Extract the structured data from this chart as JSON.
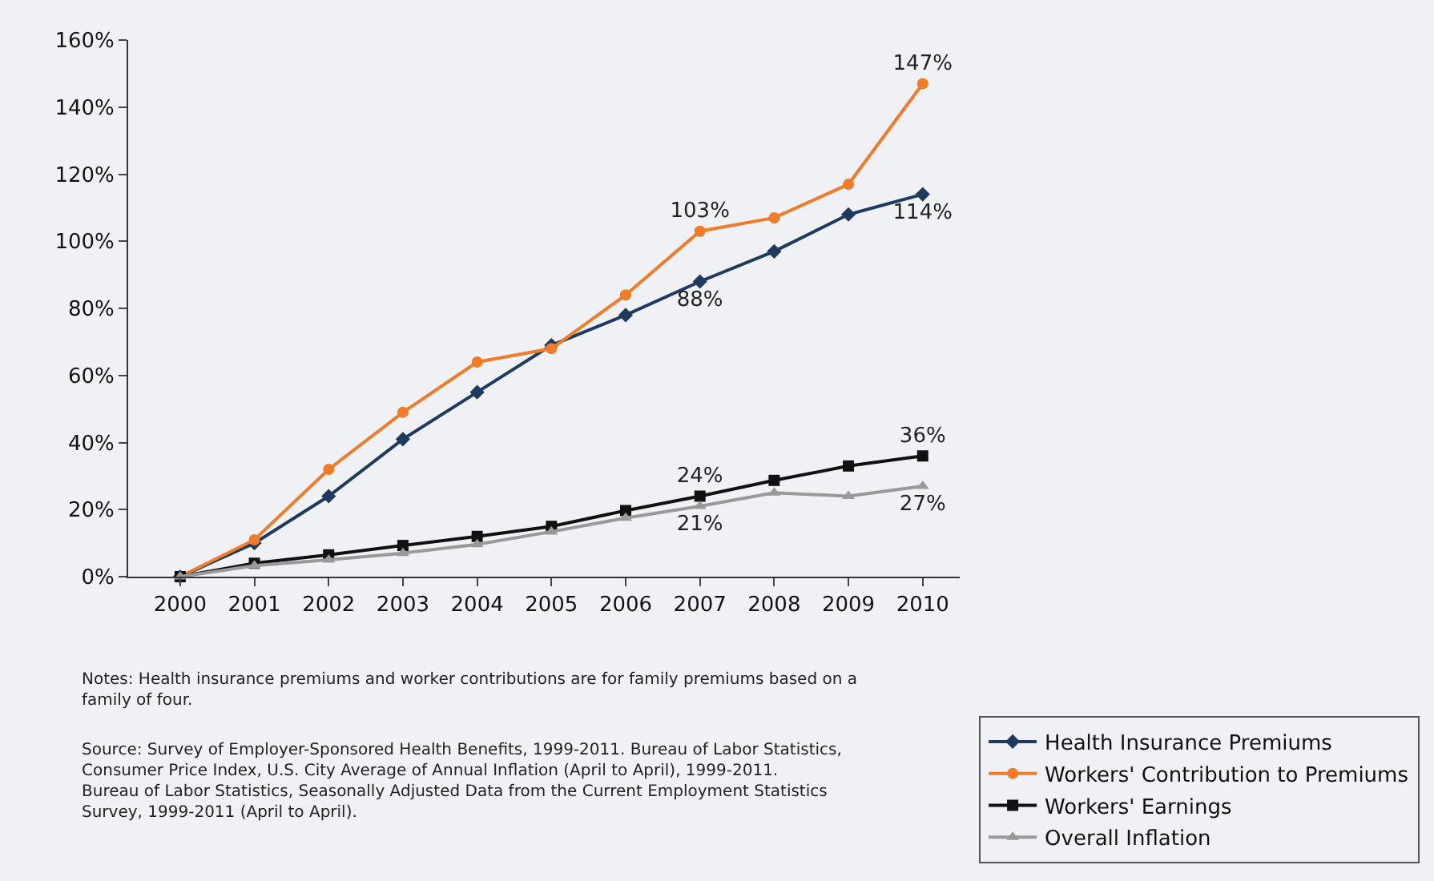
{
  "chart_data": {
    "type": "line",
    "categories": [
      "2000",
      "2001",
      "2002",
      "2003",
      "2004",
      "2005",
      "2006",
      "2007",
      "2008",
      "2009",
      "2010"
    ],
    "series": [
      {
        "name": "Health Insurance Premiums",
        "color": "#1f3a5f",
        "marker": "diamond",
        "values": [
          0,
          10,
          24,
          41,
          55,
          69,
          78,
          88,
          97,
          108,
          114
        ],
        "value_labels": [
          null,
          null,
          null,
          null,
          null,
          null,
          null,
          "88%",
          null,
          null,
          "114%"
        ]
      },
      {
        "name": "Workers' Contribution to Premiums",
        "color": "#f07c2a",
        "marker": "circle",
        "values": [
          0,
          11,
          32,
          49,
          64,
          68,
          84,
          103,
          107,
          117,
          147
        ],
        "value_labels": [
          null,
          null,
          null,
          null,
          null,
          null,
          null,
          "103%",
          null,
          null,
          "147%"
        ]
      },
      {
        "name": "Workers' Earnings",
        "color": "#111111",
        "marker": "square",
        "values": [
          0,
          4,
          6.5,
          9.3,
          12,
          15,
          19.7,
          24,
          28.7,
          33,
          36
        ],
        "value_labels": [
          null,
          null,
          null,
          null,
          null,
          null,
          null,
          "24%",
          null,
          null,
          "36%"
        ]
      },
      {
        "name": "Overall Inflation",
        "color": "#999999",
        "marker": "triangle",
        "values": [
          0,
          3.3,
          5,
          7,
          9.6,
          13.4,
          17.5,
          21,
          25,
          24,
          27
        ],
        "value_labels": [
          null,
          null,
          null,
          null,
          null,
          null,
          null,
          "21%",
          null,
          null,
          "27%"
        ]
      }
    ],
    "ylim": [
      0,
      160
    ],
    "yticks": [
      {
        "value": 0,
        "label": "0%"
      },
      {
        "value": 20,
        "label": "20%"
      },
      {
        "value": 40,
        "label": "40%"
      },
      {
        "value": 60,
        "label": "60%"
      },
      {
        "value": 80,
        "label": "80%"
      },
      {
        "value": 100,
        "label": "100%"
      },
      {
        "value": 120,
        "label": "120%"
      },
      {
        "value": 140,
        "label": "140%"
      },
      {
        "value": 160,
        "label": "160%"
      }
    ],
    "grid": false,
    "legend": "bottom right",
    "line_style": "solid",
    "annotations": [
      "Notes: Health insurance premiums and worker contributions are for family premiums based on a family of four.",
      "Source: Survey of Employer-Sponsored Health Benefits, 1999-2011. Bureau of Labor Statistics, Consumer Price Index, U.S. City Average of Annual Inflation (April to April), 1999-2011. Bureau of Labor Statistics, Seasonally Adjusted Data from the Current Employment Statistics Survey, 1999-2011 (April to April)."
    ]
  }
}
